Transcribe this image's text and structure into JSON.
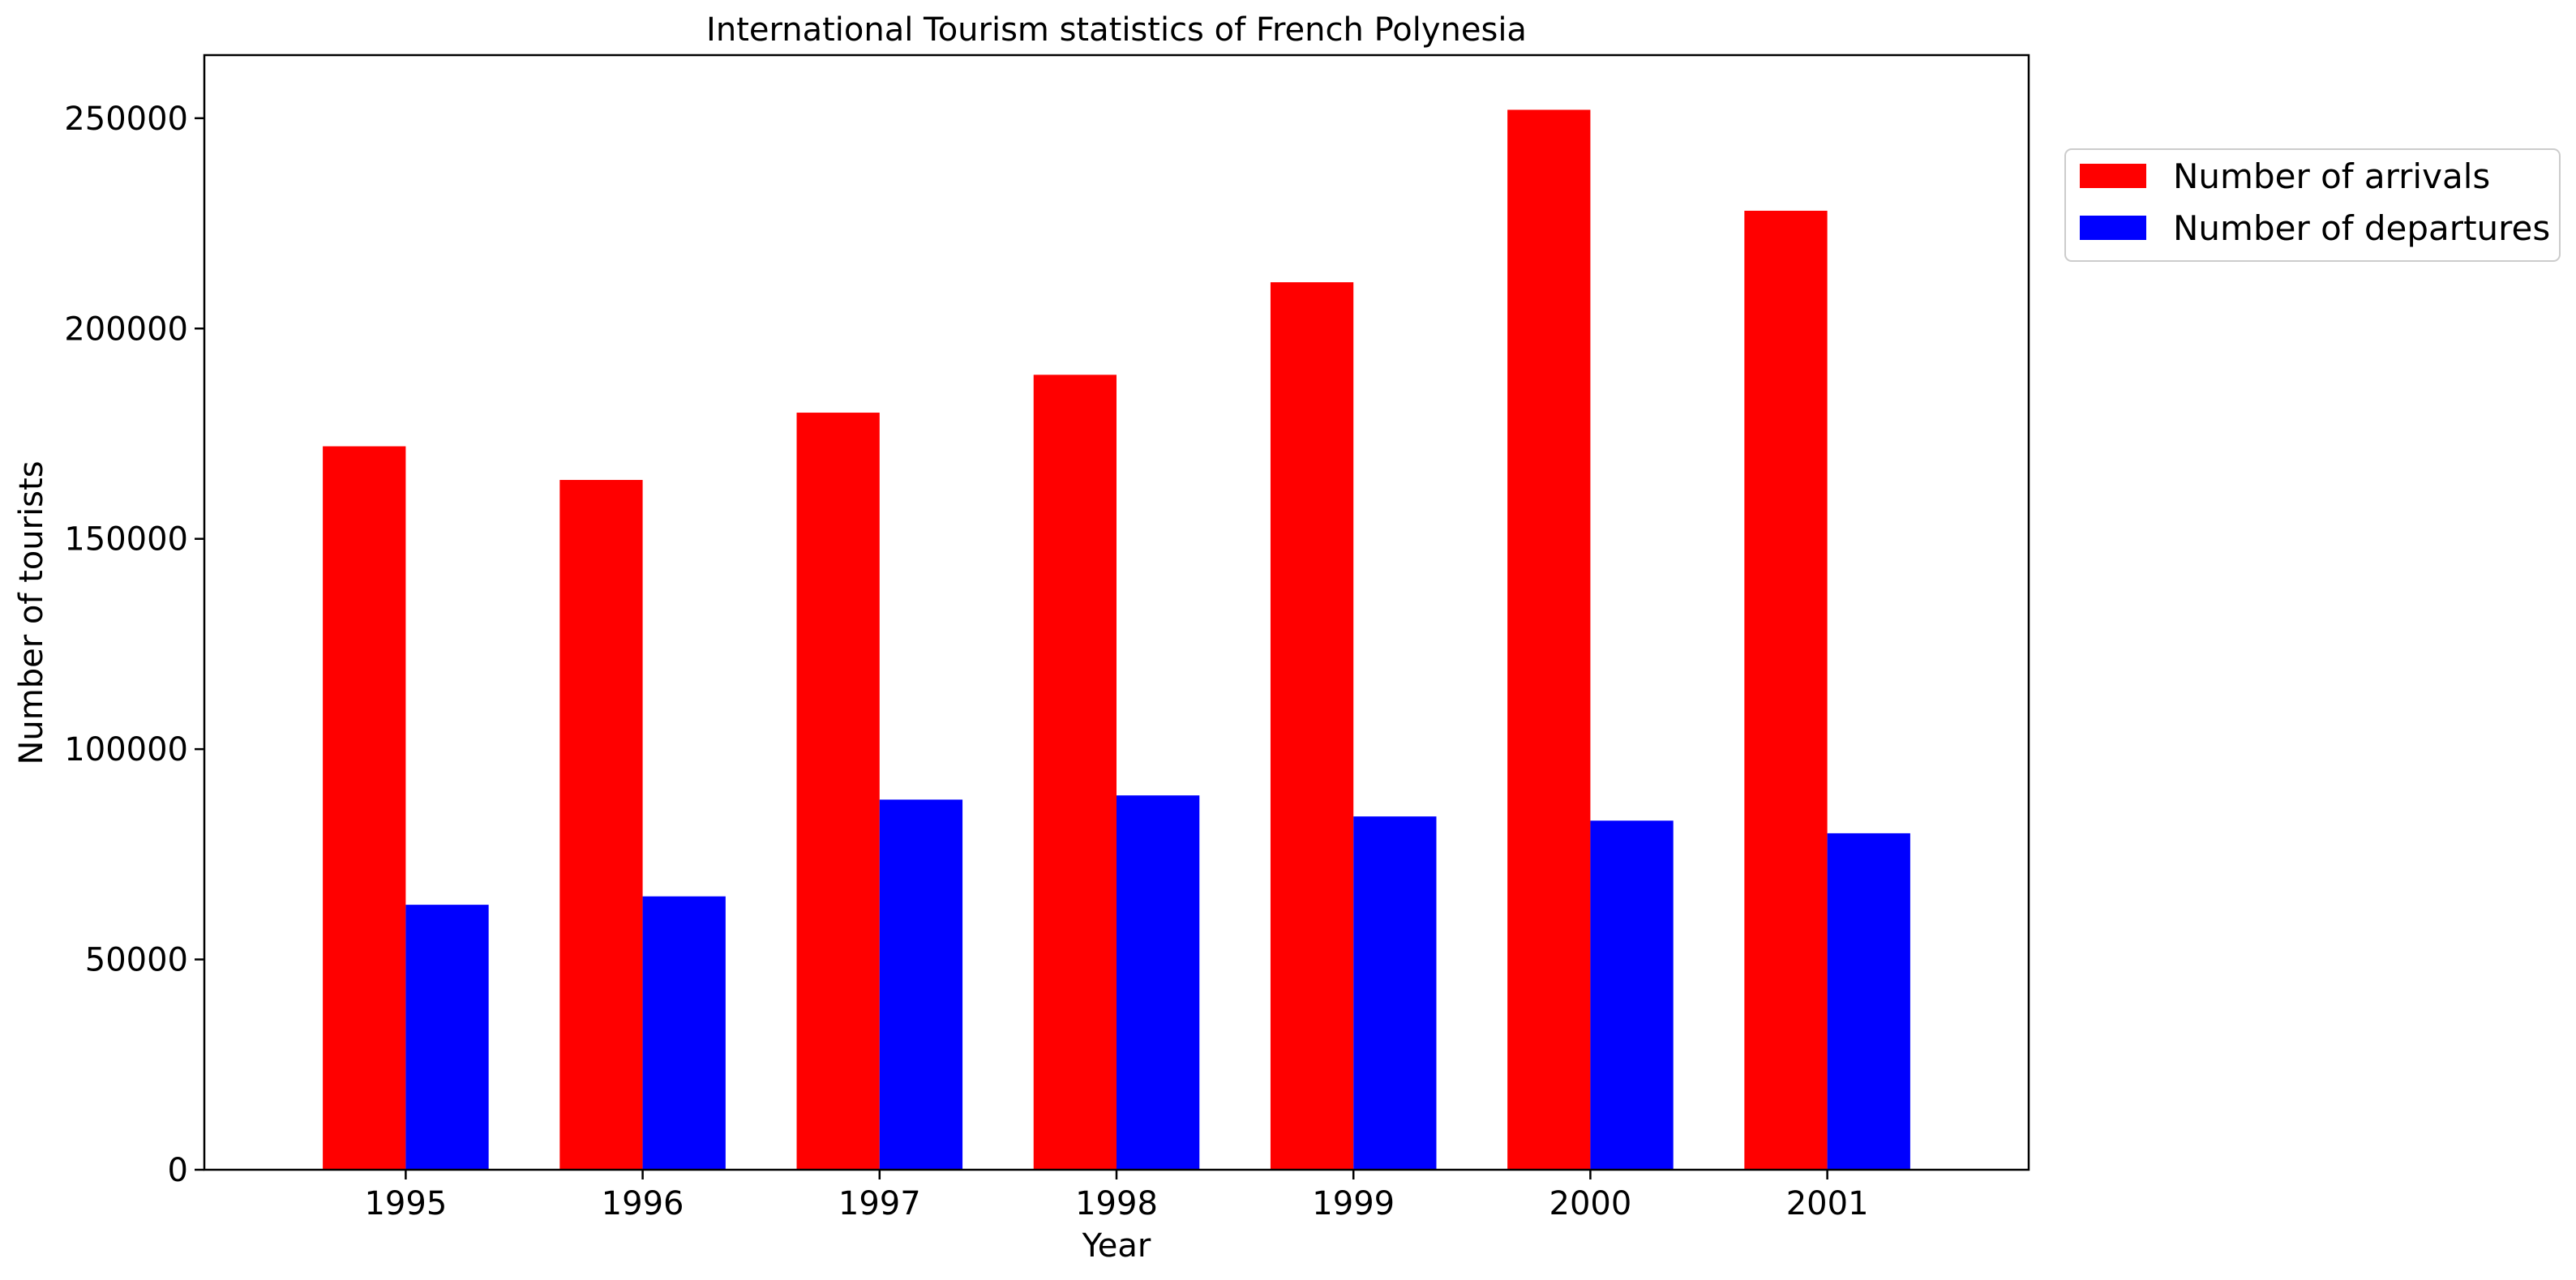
{
  "chart_data": {
    "type": "bar",
    "title": "International Tourism statistics of French Polynesia",
    "xlabel": "Year",
    "ylabel": "Number of tourists",
    "categories": [
      "1995",
      "1996",
      "1997",
      "1998",
      "1999",
      "2000",
      "2001"
    ],
    "series": [
      {
        "name": "Number of arrivals",
        "color": "#ff0000",
        "values": [
          172000,
          164000,
          180000,
          189000,
          211000,
          252000,
          228000
        ]
      },
      {
        "name": "Number of departures",
        "color": "#0000ff",
        "values": [
          63000,
          65000,
          88000,
          89000,
          84000,
          83000,
          80000
        ]
      }
    ],
    "ylim": [
      0,
      265000
    ],
    "yticks": [
      0,
      50000,
      100000,
      150000,
      200000,
      250000
    ],
    "ytick_labels": [
      "0",
      "50000",
      "100000",
      "150000",
      "200000",
      "250000"
    ],
    "grid": false,
    "legend": "outside-top-right"
  }
}
